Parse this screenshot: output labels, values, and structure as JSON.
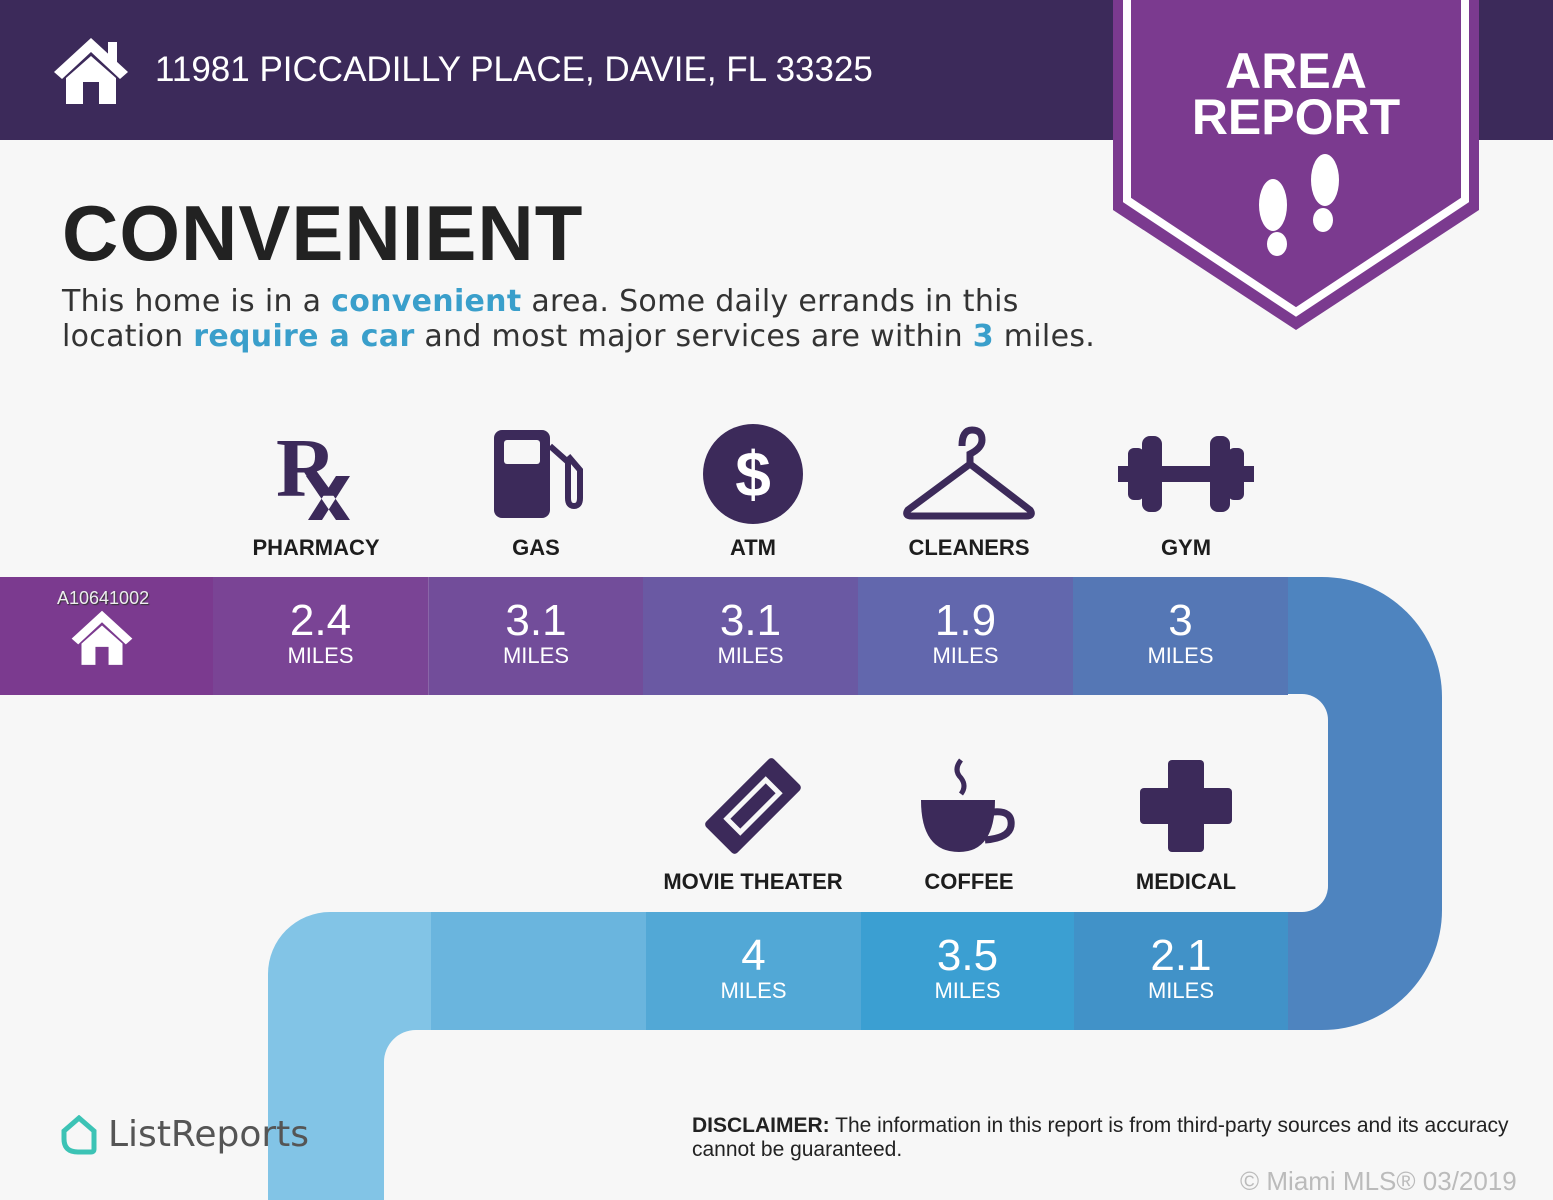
{
  "header": {
    "address": "11981 PICCADILLY PLACE, DAVIE, FL 33325",
    "icon": "home-icon"
  },
  "badge": {
    "line1": "AREA",
    "line2": "REPORT",
    "icon": "footprints-icon"
  },
  "title": "CONVENIENT",
  "description": {
    "p1": "This home is in a ",
    "h1": "convenient",
    "p2": " area. Some daily errands in this location ",
    "h2": "require a car",
    "p3": " and most major services are within ",
    "h3": "3",
    "p4": " miles."
  },
  "watermark_id": "A10641002",
  "unit": "MILES",
  "row1": [
    {
      "label": "PHARMACY",
      "value": "2.4",
      "icon": "rx-icon"
    },
    {
      "label": "GAS",
      "value": "3.1",
      "icon": "gas-pump-icon"
    },
    {
      "label": "ATM",
      "value": "3.1",
      "icon": "dollar-icon"
    },
    {
      "label": "CLEANERS",
      "value": "1.9",
      "icon": "hanger-icon"
    },
    {
      "label": "GYM",
      "value": "3",
      "icon": "dumbbell-icon"
    }
  ],
  "row2": [
    {
      "label": "MOVIE THEATER",
      "value": "4",
      "icon": "ticket-icon"
    },
    {
      "label": "COFFEE",
      "value": "3.5",
      "icon": "coffee-icon"
    },
    {
      "label": "MEDICAL",
      "value": "2.1",
      "icon": "medical-cross-icon"
    }
  ],
  "colors": {
    "header": "#3c2a5a",
    "badge": "#7b3a8f",
    "icon": "#3c2a5a",
    "highlight": "#3a9fcb"
  },
  "footer": {
    "logo": "ListReports",
    "disclaimer_label": "DISCLAIMER:",
    "disclaimer": " The information in this report is from third-party sources and its accuracy cannot be guaranteed.",
    "copyright": "© Miami MLS® 03/2019"
  }
}
